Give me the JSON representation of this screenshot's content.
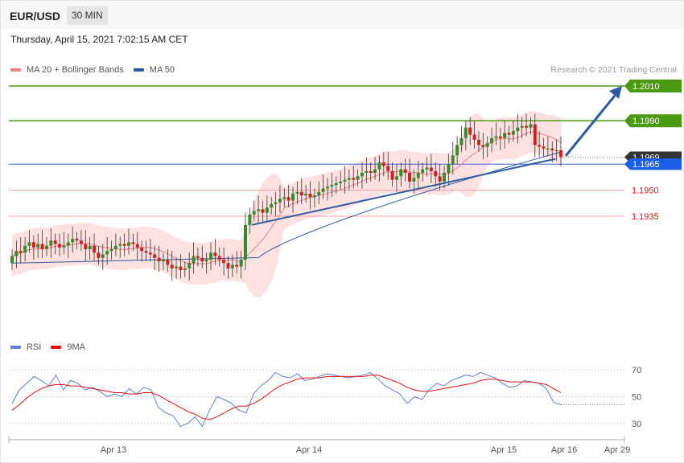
{
  "header": {
    "symbol": "EUR/USD",
    "timeframe": "30 MIN"
  },
  "datetime": "Thursday, April 15, 2021 7:02:15 AM CET",
  "copyright": "Research © 2021 Trading Central",
  "legend_main": [
    {
      "label": "MA 20 + Bollinger Bands",
      "color": "#f08080"
    },
    {
      "label": "MA 50",
      "color": "#2d5aa0"
    }
  ],
  "legend_rsi": [
    {
      "label": "RSI",
      "color": "#5a7fd6"
    },
    {
      "label": "9MA",
      "color": "#e01010"
    }
  ],
  "colors": {
    "resistance": "#4a9a10",
    "support": "#f06060",
    "pivot": "#3060e0",
    "current": "#333333",
    "arrow": "#2d5aa0"
  },
  "chart_data": [
    {
      "type": "candlestick",
      "x_ticks": [
        "Apr 13",
        "Apr 14",
        "Apr 15",
        "Apr 16",
        "Apr 29"
      ],
      "ylim": [
        1.1895,
        1.2015
      ],
      "levels": [
        {
          "value": "1.2010",
          "kind": "resistance"
        },
        {
          "value": "1.1990",
          "kind": "resistance"
        },
        {
          "value": "1.1969",
          "kind": "current"
        },
        {
          "value": "1.1965",
          "kind": "pivot"
        },
        {
          "value": "1.1950",
          "kind": "support"
        },
        {
          "value": "1.1935",
          "kind": "support"
        }
      ],
      "close": [
        1.1912,
        1.1915,
        1.1914,
        1.1918,
        1.192,
        1.1917,
        1.1919,
        1.1916,
        1.1918,
        1.1921,
        1.1919,
        1.1917,
        1.1918,
        1.192,
        1.1922,
        1.1921,
        1.1919,
        1.1916,
        1.1918,
        1.1914,
        1.1911,
        1.1913,
        1.1915,
        1.1916,
        1.1918,
        1.1919,
        1.1918,
        1.192,
        1.1919,
        1.1917,
        1.1915,
        1.1914,
        1.1913,
        1.1911,
        1.1909,
        1.191,
        1.1907,
        1.1905,
        1.1906,
        1.1904,
        1.1905,
        1.1908,
        1.1912,
        1.1911,
        1.1909,
        1.191,
        1.1914,
        1.1912,
        1.191,
        1.1908,
        1.1905,
        1.1907,
        1.1906,
        1.191,
        1.193,
        1.1936,
        1.1938,
        1.1939,
        1.1937,
        1.194,
        1.1942,
        1.1943,
        1.1945,
        1.1946,
        1.1944,
        1.1948,
        1.1949,
        1.1947,
        1.1948,
        1.1946,
        1.1947,
        1.1949,
        1.1951,
        1.1952,
        1.1953,
        1.1954,
        1.1955,
        1.1956,
        1.1957,
        1.1956,
        1.1958,
        1.196,
        1.1961,
        1.196,
        1.1962,
        1.1966,
        1.1964,
        1.1961,
        1.1956,
        1.1958,
        1.1962,
        1.196,
        1.1955,
        1.1957,
        1.196,
        1.1962,
        1.1963,
        1.1961,
        1.1958,
        1.1955,
        1.196,
        1.1965,
        1.197,
        1.1976,
        1.198,
        1.1986,
        1.1982,
        1.1979,
        1.1976,
        1.1975,
        1.1977,
        1.198,
        1.1981,
        1.198,
        1.1983,
        1.1982,
        1.1984,
        1.1986,
        1.1987,
        1.1986,
        1.1988,
        1.1976,
        1.1975,
        1.1974,
        1.1974,
        1.1973,
        1.1973,
        1.1969
      ],
      "ma50_range": [
        1.1908,
        1.1972
      ],
      "trendline": {
        "from": 1.193,
        "to": 1.1968
      },
      "projection_target": "1.2010"
    },
    {
      "type": "line",
      "title": "RSI",
      "ylim": [
        25,
        75
      ],
      "y_ticks": [
        70,
        50,
        30
      ],
      "series": [
        {
          "name": "RSI",
          "values": [
            45,
            55,
            60,
            65,
            62,
            58,
            66,
            55,
            62,
            60,
            55,
            57,
            54,
            50,
            52,
            50,
            56,
            52,
            57,
            55,
            42,
            38,
            36,
            28,
            30,
            35,
            28,
            40,
            50,
            48,
            45,
            40,
            38,
            52,
            58,
            62,
            68,
            65,
            64,
            67,
            62,
            63,
            65,
            67,
            66,
            65,
            64,
            65,
            66,
            68,
            63,
            58,
            55,
            52,
            45,
            50,
            48,
            55,
            60,
            58,
            62,
            64,
            66,
            65,
            68,
            66,
            64,
            60,
            57,
            58,
            62,
            61,
            60,
            56,
            46,
            44
          ],
          "rsi9ma": [
            40,
            44,
            49,
            53,
            56,
            58,
            59,
            59,
            58,
            58,
            57,
            56,
            55,
            54,
            53,
            53,
            52,
            52,
            53,
            53,
            51,
            48,
            45,
            42,
            39,
            37,
            34,
            33,
            35,
            38,
            41,
            43,
            43,
            45,
            48,
            52,
            56,
            59,
            61,
            63,
            64,
            64,
            64,
            65,
            65,
            65,
            65,
            65,
            65,
            66,
            66,
            64,
            62,
            60,
            57,
            55,
            54,
            54,
            55,
            56,
            57,
            58,
            59,
            60,
            62,
            63,
            63,
            62,
            61,
            61,
            61,
            61,
            60,
            59,
            56,
            53
          ]
        }
      ]
    }
  ]
}
